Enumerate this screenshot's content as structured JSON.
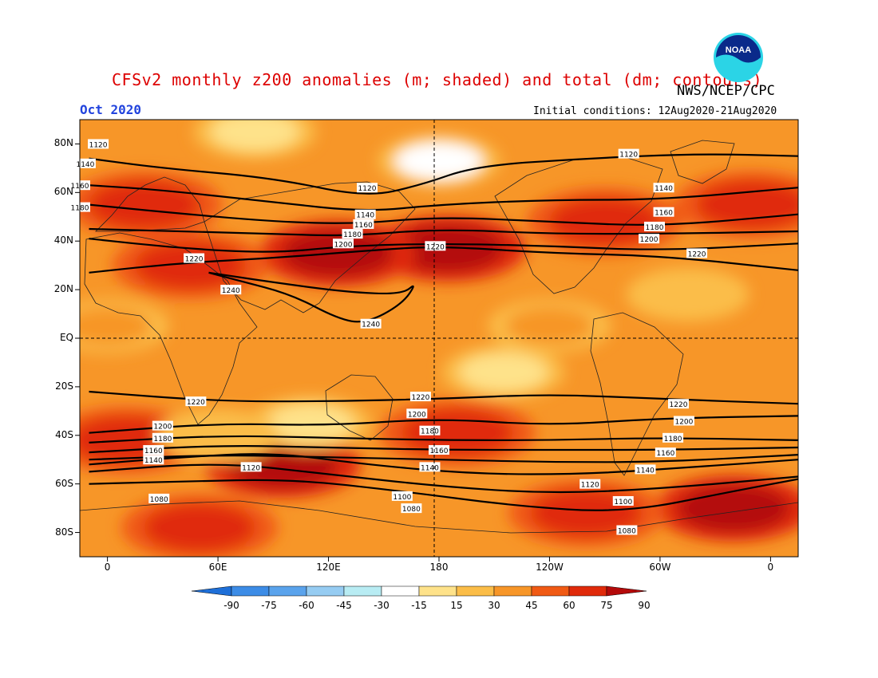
{
  "header": {
    "title": "CFSv2 monthly z200 anomalies (m; shaded) and total (dm; contours)",
    "agency": "NWS/NCEP/CPC",
    "logo_text": "NOAA",
    "month": "Oct 2020",
    "initial_conditions": "Initial conditions: 12Aug2020-21Aug2020"
  },
  "colors": {
    "title": "#dd0000",
    "month": "#2244dd",
    "bands": [
      "#1e6fd8",
      "#3c8ce6",
      "#5aa3ec",
      "#96ccf2",
      "#b8ecf3",
      "#ffffff",
      "#fee28a",
      "#fbbd48",
      "#f79628",
      "#f05a14",
      "#e02a0a",
      "#b40a0a"
    ]
  },
  "axes": {
    "lat_labels": [
      "80N",
      "60N",
      "40N",
      "20N",
      "EQ",
      "20S",
      "40S",
      "60S",
      "80S"
    ],
    "lon_labels": [
      "0",
      "60E",
      "120E",
      "180",
      "120W",
      "60W",
      "0"
    ]
  },
  "colorbar": {
    "ticks": [
      "-90",
      "-75",
      "-60",
      "-45",
      "-30",
      "-15",
      "15",
      "30",
      "45",
      "60",
      "75",
      "90"
    ]
  },
  "chart_data": {
    "type": "heatmap",
    "variable": "z200",
    "anomaly_units": "m",
    "contour_units": "dm",
    "legend_levels_m": [
      -90,
      -75,
      -60,
      -45,
      -30,
      -15,
      15,
      30,
      45,
      60,
      75,
      90
    ],
    "lon_range_deg": [
      -15,
      375
    ],
    "lat_range_deg": [
      -90,
      90
    ],
    "contours": [
      {
        "level": 1080,
        "points": [
          [
            -10,
            -60
          ],
          [
            40,
            -59
          ],
          [
            100,
            -58
          ],
          [
            160,
            -63
          ],
          [
            220,
            -69
          ],
          [
            280,
            -72
          ],
          [
            340,
            -63
          ],
          [
            375,
            -58
          ]
        ]
      },
      {
        "level": 1100,
        "points": [
          [
            -10,
            -55
          ],
          [
            60,
            -51
          ],
          [
            120,
            -56
          ],
          [
            180,
            -61
          ],
          [
            240,
            -64
          ],
          [
            300,
            -62
          ],
          [
            375,
            -57
          ]
        ]
      },
      {
        "level": 1120,
        "points": [
          [
            -10,
            -52
          ],
          [
            40,
            -49
          ],
          [
            90,
            -47
          ],
          [
            140,
            -52
          ],
          [
            200,
            -56
          ],
          [
            260,
            -56
          ],
          [
            320,
            -53
          ],
          [
            375,
            -50
          ]
        ]
      },
      {
        "level": 1140,
        "points": [
          [
            -10,
            -50
          ],
          [
            60,
            -48
          ],
          [
            120,
            -49
          ],
          [
            180,
            -50
          ],
          [
            240,
            -51
          ],
          [
            300,
            -51
          ],
          [
            375,
            -48
          ]
        ]
      },
      {
        "level": 1160,
        "points": [
          [
            -10,
            -47
          ],
          [
            60,
            -44
          ],
          [
            120,
            -45
          ],
          [
            180,
            -46
          ],
          [
            240,
            -46
          ],
          [
            300,
            -46
          ],
          [
            375,
            -45
          ]
        ]
      },
      {
        "level": 1180,
        "points": [
          [
            -10,
            -43
          ],
          [
            60,
            -40
          ],
          [
            120,
            -41
          ],
          [
            180,
            -42
          ],
          [
            240,
            -42
          ],
          [
            300,
            -41
          ],
          [
            375,
            -42
          ]
        ]
      },
      {
        "level": 1200,
        "points": [
          [
            -10,
            -39
          ],
          [
            60,
            -35
          ],
          [
            120,
            -36
          ],
          [
            180,
            -33
          ],
          [
            240,
            -36
          ],
          [
            300,
            -33
          ],
          [
            375,
            -32
          ]
        ]
      },
      {
        "level": 1220,
        "points": [
          [
            -10,
            -22
          ],
          [
            60,
            -26
          ],
          [
            120,
            -26
          ],
          [
            180,
            -25
          ],
          [
            240,
            -23
          ],
          [
            300,
            -25
          ],
          [
            375,
            -27
          ]
        ]
      },
      {
        "level": 1220,
        "points": [
          [
            -10,
            27
          ],
          [
            40,
            31
          ],
          [
            90,
            33
          ],
          [
            140,
            36
          ],
          [
            180,
            38
          ],
          [
            240,
            35
          ],
          [
            300,
            34
          ],
          [
            375,
            28
          ]
        ]
      },
      {
        "level": 1240,
        "points": [
          [
            55,
            27
          ],
          [
            90,
            23
          ],
          [
            130,
            19
          ],
          [
            160,
            18
          ],
          [
            168,
            23
          ],
          [
            160,
            14
          ],
          [
            140,
            6
          ],
          [
            125,
            8
          ],
          [
            100,
            18
          ],
          [
            70,
            24
          ],
          [
            55,
            27
          ]
        ]
      },
      {
        "level": 1200,
        "points": [
          [
            -10,
            41
          ],
          [
            40,
            37
          ],
          [
            90,
            35
          ],
          [
            130,
            38
          ],
          [
            180,
            39
          ],
          [
            240,
            38
          ],
          [
            300,
            36
          ],
          [
            375,
            39
          ]
        ]
      },
      {
        "level": 1180,
        "points": [
          [
            -10,
            45
          ],
          [
            40,
            44
          ],
          [
            90,
            43
          ],
          [
            130,
            42
          ],
          [
            180,
            45
          ],
          [
            240,
            43
          ],
          [
            300,
            43
          ],
          [
            375,
            44
          ]
        ]
      },
      {
        "level": 1160,
        "points": [
          [
            -10,
            55
          ],
          [
            30,
            52
          ],
          [
            90,
            48
          ],
          [
            135,
            47
          ],
          [
            180,
            50
          ],
          [
            240,
            48
          ],
          [
            300,
            46
          ],
          [
            375,
            51
          ]
        ]
      },
      {
        "level": 1140,
        "points": [
          [
            -10,
            63
          ],
          [
            30,
            61
          ],
          [
            90,
            56
          ],
          [
            140,
            52
          ],
          [
            180,
            55
          ],
          [
            240,
            57
          ],
          [
            300,
            57
          ],
          [
            375,
            62
          ]
        ]
      },
      {
        "level": 1120,
        "points": [
          [
            -10,
            74
          ],
          [
            30,
            70
          ],
          [
            90,
            66
          ],
          [
            140,
            58
          ],
          [
            170,
            63
          ],
          [
            200,
            71
          ],
          [
            260,
            74
          ],
          [
            320,
            76
          ],
          [
            375,
            75
          ]
        ]
      }
    ],
    "anomaly_blobs": [
      {
        "lon": 95,
        "lat": -52,
        "value": 80
      },
      {
        "lon": 190,
        "lat": -39,
        "value": 70
      },
      {
        "lon": 185,
        "lat": 37,
        "value": 80
      },
      {
        "lon": 125,
        "lat": 35,
        "value": 75
      },
      {
        "lon": 45,
        "lat": 30,
        "value": 70
      },
      {
        "lon": 270,
        "lat": 48,
        "value": 70
      },
      {
        "lon": 20,
        "lat": 55,
        "value": 65
      },
      {
        "lon": 350,
        "lat": 55,
        "value": 60
      },
      {
        "lon": 340,
        "lat": -70,
        "value": 75
      },
      {
        "lon": 50,
        "lat": -78,
        "value": 65
      },
      {
        "lon": 10,
        "lat": -42,
        "value": 65
      },
      {
        "lon": 260,
        "lat": -72,
        "value": 70
      },
      {
        "lon": 180,
        "lat": 73,
        "value": -25
      },
      {
        "lon": 110,
        "lat": -35,
        "value": 0
      },
      {
        "lon": 215,
        "lat": -14,
        "value": 0
      },
      {
        "lon": 80,
        "lat": 85,
        "value": 0
      },
      {
        "lon": 60,
        "lat": -40,
        "value": 25
      },
      {
        "lon": 315,
        "lat": 18,
        "value": 20
      },
      {
        "lon": 0,
        "lat": 5,
        "value": 35
      },
      {
        "lon": 240,
        "lat": 5,
        "value": 30
      }
    ],
    "contour_labels": [
      {
        "text": "1120",
        "lon": -5,
        "lat": 80
      },
      {
        "text": "1140",
        "lon": -12,
        "lat": 72
      },
      {
        "text": "1160",
        "lon": -15,
        "lat": 63
      },
      {
        "text": "1180",
        "lon": -15,
        "lat": 54
      },
      {
        "text": "1120",
        "lon": 141,
        "lat": 62
      },
      {
        "text": "1140",
        "lon": 140,
        "lat": 51
      },
      {
        "text": "1160",
        "lon": 139,
        "lat": 47
      },
      {
        "text": "1180",
        "lon": 133,
        "lat": 43
      },
      {
        "text": "1200",
        "lon": 128,
        "lat": 39
      },
      {
        "text": "1220",
        "lon": 47,
        "lat": 33
      },
      {
        "text": "1220",
        "lon": 178,
        "lat": 38
      },
      {
        "text": "1240",
        "lon": 67,
        "lat": 20
      },
      {
        "text": "1240",
        "lon": 143,
        "lat": 6
      },
      {
        "text": "1120",
        "lon": 283,
        "lat": 76
      },
      {
        "text": "1140",
        "lon": 302,
        "lat": 62
      },
      {
        "text": "1160",
        "lon": 302,
        "lat": 52
      },
      {
        "text": "1180",
        "lon": 297,
        "lat": 46
      },
      {
        "text": "1200",
        "lon": 294,
        "lat": 41
      },
      {
        "text": "1220",
        "lon": 320,
        "lat": 35
      },
      {
        "text": "1220",
        "lon": 48,
        "lat": -26
      },
      {
        "text": "1200",
        "lon": 30,
        "lat": -36
      },
      {
        "text": "1180",
        "lon": 30,
        "lat": -41
      },
      {
        "text": "1160",
        "lon": 25,
        "lat": -46
      },
      {
        "text": "1140",
        "lon": 25,
        "lat": -50
      },
      {
        "text": "1120",
        "lon": 78,
        "lat": -53
      },
      {
        "text": "1080",
        "lon": 28,
        "lat": -66
      },
      {
        "text": "1220",
        "lon": 170,
        "lat": -24
      },
      {
        "text": "1200",
        "lon": 168,
        "lat": -31
      },
      {
        "text": "1180",
        "lon": 175,
        "lat": -38
      },
      {
        "text": "1160",
        "lon": 180,
        "lat": -46
      },
      {
        "text": "1140",
        "lon": 175,
        "lat": -53
      },
      {
        "text": "1100",
        "lon": 160,
        "lat": -65
      },
      {
        "text": "1080",
        "lon": 165,
        "lat": -70
      },
      {
        "text": "1220",
        "lon": 310,
        "lat": -27
      },
      {
        "text": "1200",
        "lon": 313,
        "lat": -34
      },
      {
        "text": "1180",
        "lon": 307,
        "lat": -41
      },
      {
        "text": "1160",
        "lon": 303,
        "lat": -47
      },
      {
        "text": "1140",
        "lon": 292,
        "lat": -54
      },
      {
        "text": "1120",
        "lon": 262,
        "lat": -60
      },
      {
        "text": "1100",
        "lon": 280,
        "lat": -67
      },
      {
        "text": "1080",
        "lon": 282,
        "lat": -79
      }
    ]
  }
}
